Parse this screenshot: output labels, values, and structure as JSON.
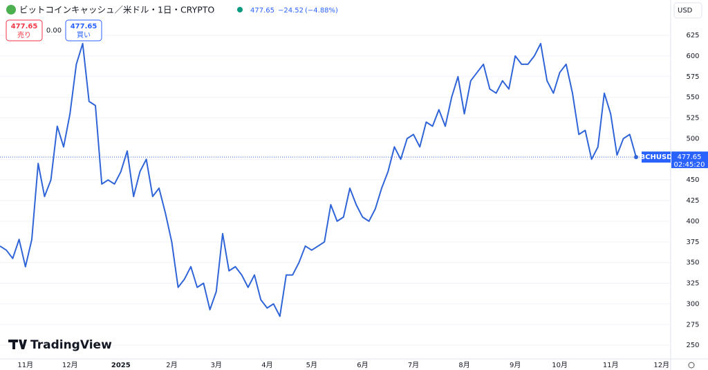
{
  "chart_data": {
    "type": "line",
    "title": "ビットコインキャッシュ／米ドル・1日・CRYPTO",
    "header_price": "477.65",
    "header_change": "−24.52",
    "header_change_pct": "(−4.88%)",
    "sell_price": "477.65",
    "sell_label": "売り",
    "spread": "0.00",
    "buy_price": "477.65",
    "buy_label": "買い",
    "currency": "USD",
    "last_price": 477.65,
    "countdown": "02:45:20",
    "logo": "TradingView",
    "categories": [
      null,
      null,
      null,
      null,
      "11月",
      null,
      null,
      null,
      null,
      null,
      null,
      "12月",
      null,
      null,
      null,
      null,
      null,
      null,
      null,
      "2025",
      null,
      null,
      null,
      null,
      null,
      null,
      null,
      "2月",
      null,
      null,
      null,
      null,
      null,
      null,
      "3月",
      null,
      null,
      null,
      null,
      null,
      null,
      null,
      "4月",
      null,
      null,
      null,
      null,
      null,
      null,
      "5月",
      null,
      null,
      null,
      null,
      null,
      null,
      null,
      "6月",
      null,
      null,
      null,
      null,
      null,
      null,
      null,
      "7月",
      null,
      null,
      null,
      null,
      null,
      null,
      null,
      "8月",
      null,
      null,
      null,
      null,
      null,
      null,
      null,
      "9月",
      null,
      null,
      null,
      null,
      null,
      null,
      "10月",
      null,
      null,
      null,
      null,
      null,
      null,
      null,
      "11月",
      null,
      null,
      null,
      null,
      null,
      null,
      null,
      "12月",
      null
    ],
    "series": [
      {
        "name": "BCHUSD",
        "color": "#2f64d8",
        "values": [
          370,
          365,
          355,
          378,
          345,
          378,
          470,
          430,
          450,
          515,
          490,
          530,
          590,
          615,
          545,
          540,
          445,
          450,
          445,
          460,
          485,
          430,
          460,
          475,
          430,
          440,
          410,
          375,
          320,
          330,
          345,
          320,
          325,
          293,
          315,
          385,
          340,
          345,
          335,
          320,
          335,
          305,
          295,
          300,
          285,
          335,
          335,
          350,
          370,
          365,
          370,
          375,
          420,
          400,
          405,
          440,
          420,
          405,
          400,
          415,
          440,
          460,
          490,
          475,
          500,
          505,
          490,
          520,
          515,
          535,
          515,
          550,
          575,
          530,
          570,
          580,
          590,
          560,
          555,
          570,
          560,
          600,
          590,
          590,
          600,
          615,
          570,
          555,
          580,
          590,
          555,
          505,
          510,
          475,
          490,
          555,
          530,
          480,
          500,
          505,
          477.65,
          null,
          null,
          null,
          null,
          null
        ]
      }
    ],
    "ylim": [
      233.4,
      667.7
    ],
    "yticks": [
      250,
      275,
      300,
      325,
      350,
      375,
      400,
      425,
      450,
      475,
      500,
      525,
      550,
      575,
      600,
      625
    ],
    "grid": true
  }
}
